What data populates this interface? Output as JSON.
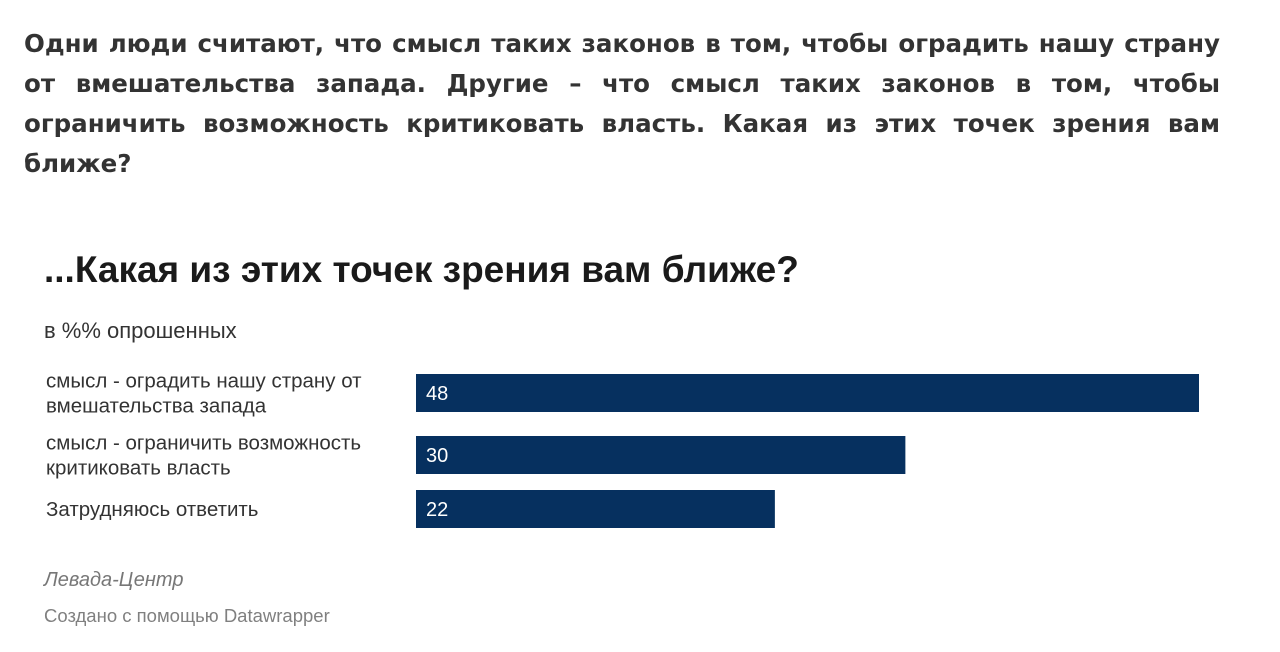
{
  "intro_text": "Одни люди считают, что смысл таких законов в том, чтобы оградить нашу страну от вмешательства запада. Другие – что смысл таких законов в том, чтобы ограничить возможность критиковать власть. Какая из этих точек зрения вам ближе?",
  "source": "Левада-Центр",
  "credit": "Создано с помощью Datawrapper",
  "colors": {
    "bar": "#06305f",
    "bar_label": "#ffffff",
    "text": "#333333"
  },
  "chart_data": {
    "type": "bar",
    "orientation": "horizontal",
    "title": "...Какая из этих точек зрения вам ближе?",
    "subtitle": "в %% опрошенных",
    "categories": [
      [
        "смысл - оградить нашу страну от",
        "вмешательства запада"
      ],
      [
        "смысл - ограничить возможность",
        "критиковать власть"
      ],
      [
        "Затрудняюсь ответить"
      ]
    ],
    "values": [
      48,
      30,
      22
    ],
    "xlim": [
      0,
      48
    ],
    "grid": false,
    "legend": "none"
  }
}
